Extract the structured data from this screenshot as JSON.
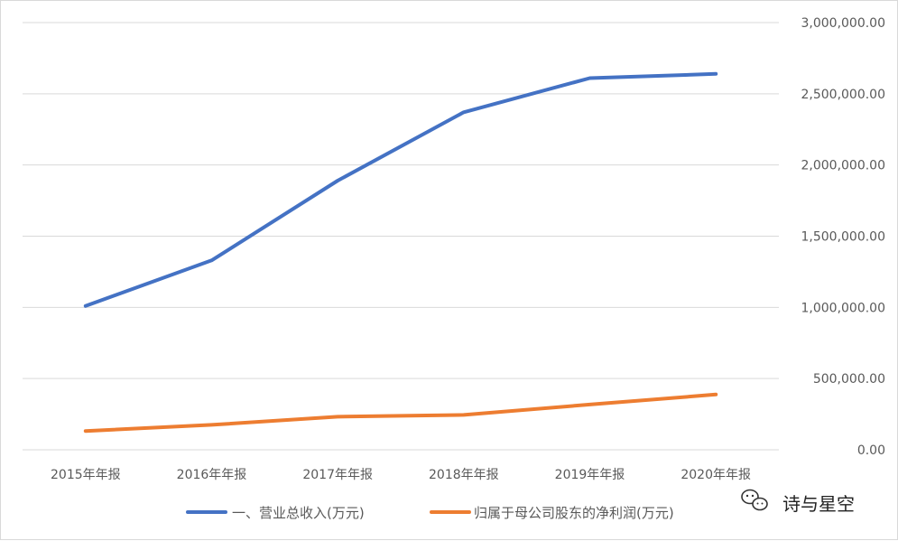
{
  "chart_data": {
    "type": "line",
    "title": "",
    "xlabel": "",
    "ylabel": "",
    "categories": [
      "2015年年报",
      "2016年年报",
      "2017年年报",
      "2018年年报",
      "2019年年报",
      "2020年年报"
    ],
    "series": [
      {
        "name": "一、营业总收入(万元)",
        "color": "#4472C4",
        "values": [
          1010000,
          1330000,
          1890000,
          2370000,
          2610000,
          2640000
        ]
      },
      {
        "name": "归属于母公司股东的净利润(万元)",
        "color": "#ED7D31",
        "values": [
          132000,
          175000,
          232000,
          245000,
          318000,
          388000
        ]
      }
    ],
    "yticks": [
      "0.00",
      "500,000.00",
      "1,000,000.00",
      "1,500,000.00",
      "2,000,000.00",
      "2,500,000.00",
      "3,000,000.00"
    ],
    "ylim": [
      0,
      3000000
    ],
    "y_axis_position": "right",
    "grid": true,
    "legend_position": "bottom"
  },
  "watermark": {
    "text": "诗与星空",
    "icon": "wechat-icon"
  }
}
